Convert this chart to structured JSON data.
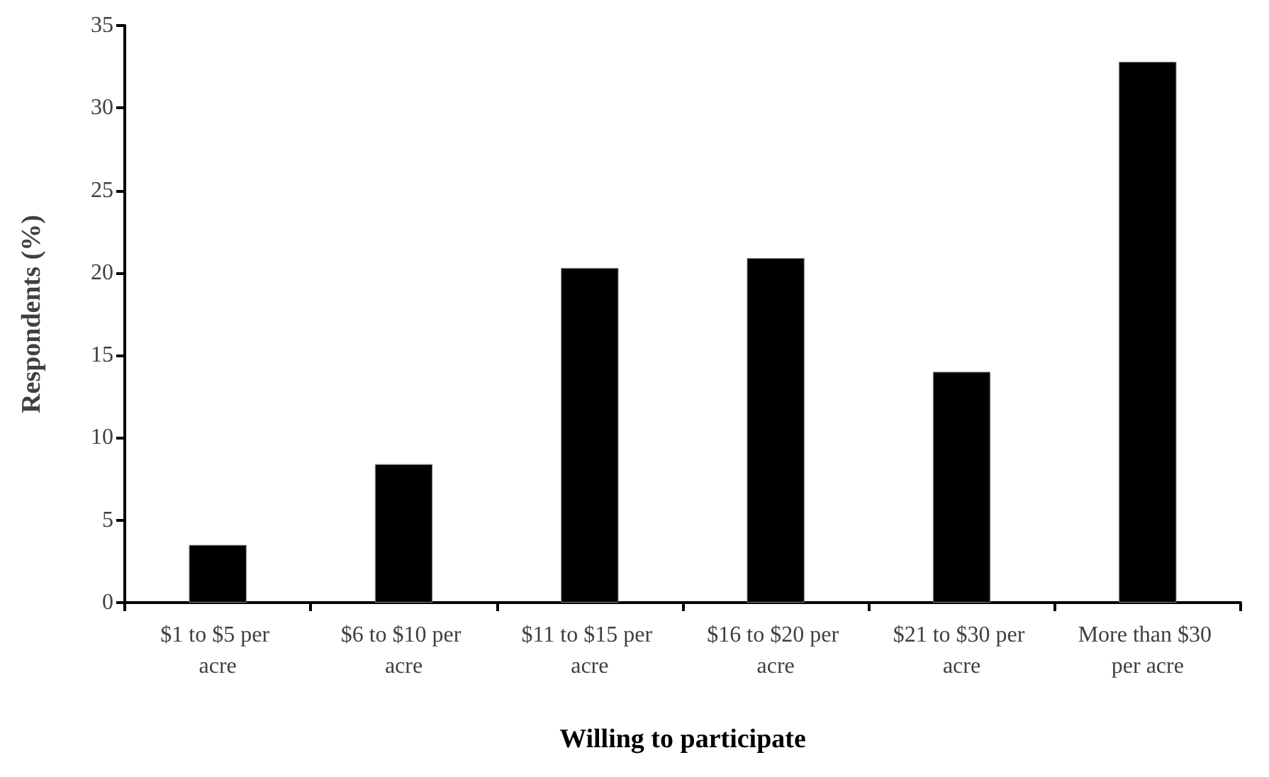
{
  "chart_data": {
    "type": "bar",
    "xlabel": "Willing to participate",
    "ylabel": "Respondents (%)",
    "categories": [
      "$1 to $5 per acre",
      "$6 to $10 per acre",
      "$11 to $15 per acre",
      "$16 to $20 per acre",
      "$21 to $30 per acre",
      "More than $30 per acre"
    ],
    "values": [
      3.5,
      8.4,
      20.3,
      20.9,
      14.0,
      32.8
    ],
    "color": "#000000",
    "ylim": [
      0,
      35
    ],
    "yticks": [
      0,
      5,
      10,
      15,
      20,
      25,
      30,
      35
    ],
    "grid": false
  }
}
